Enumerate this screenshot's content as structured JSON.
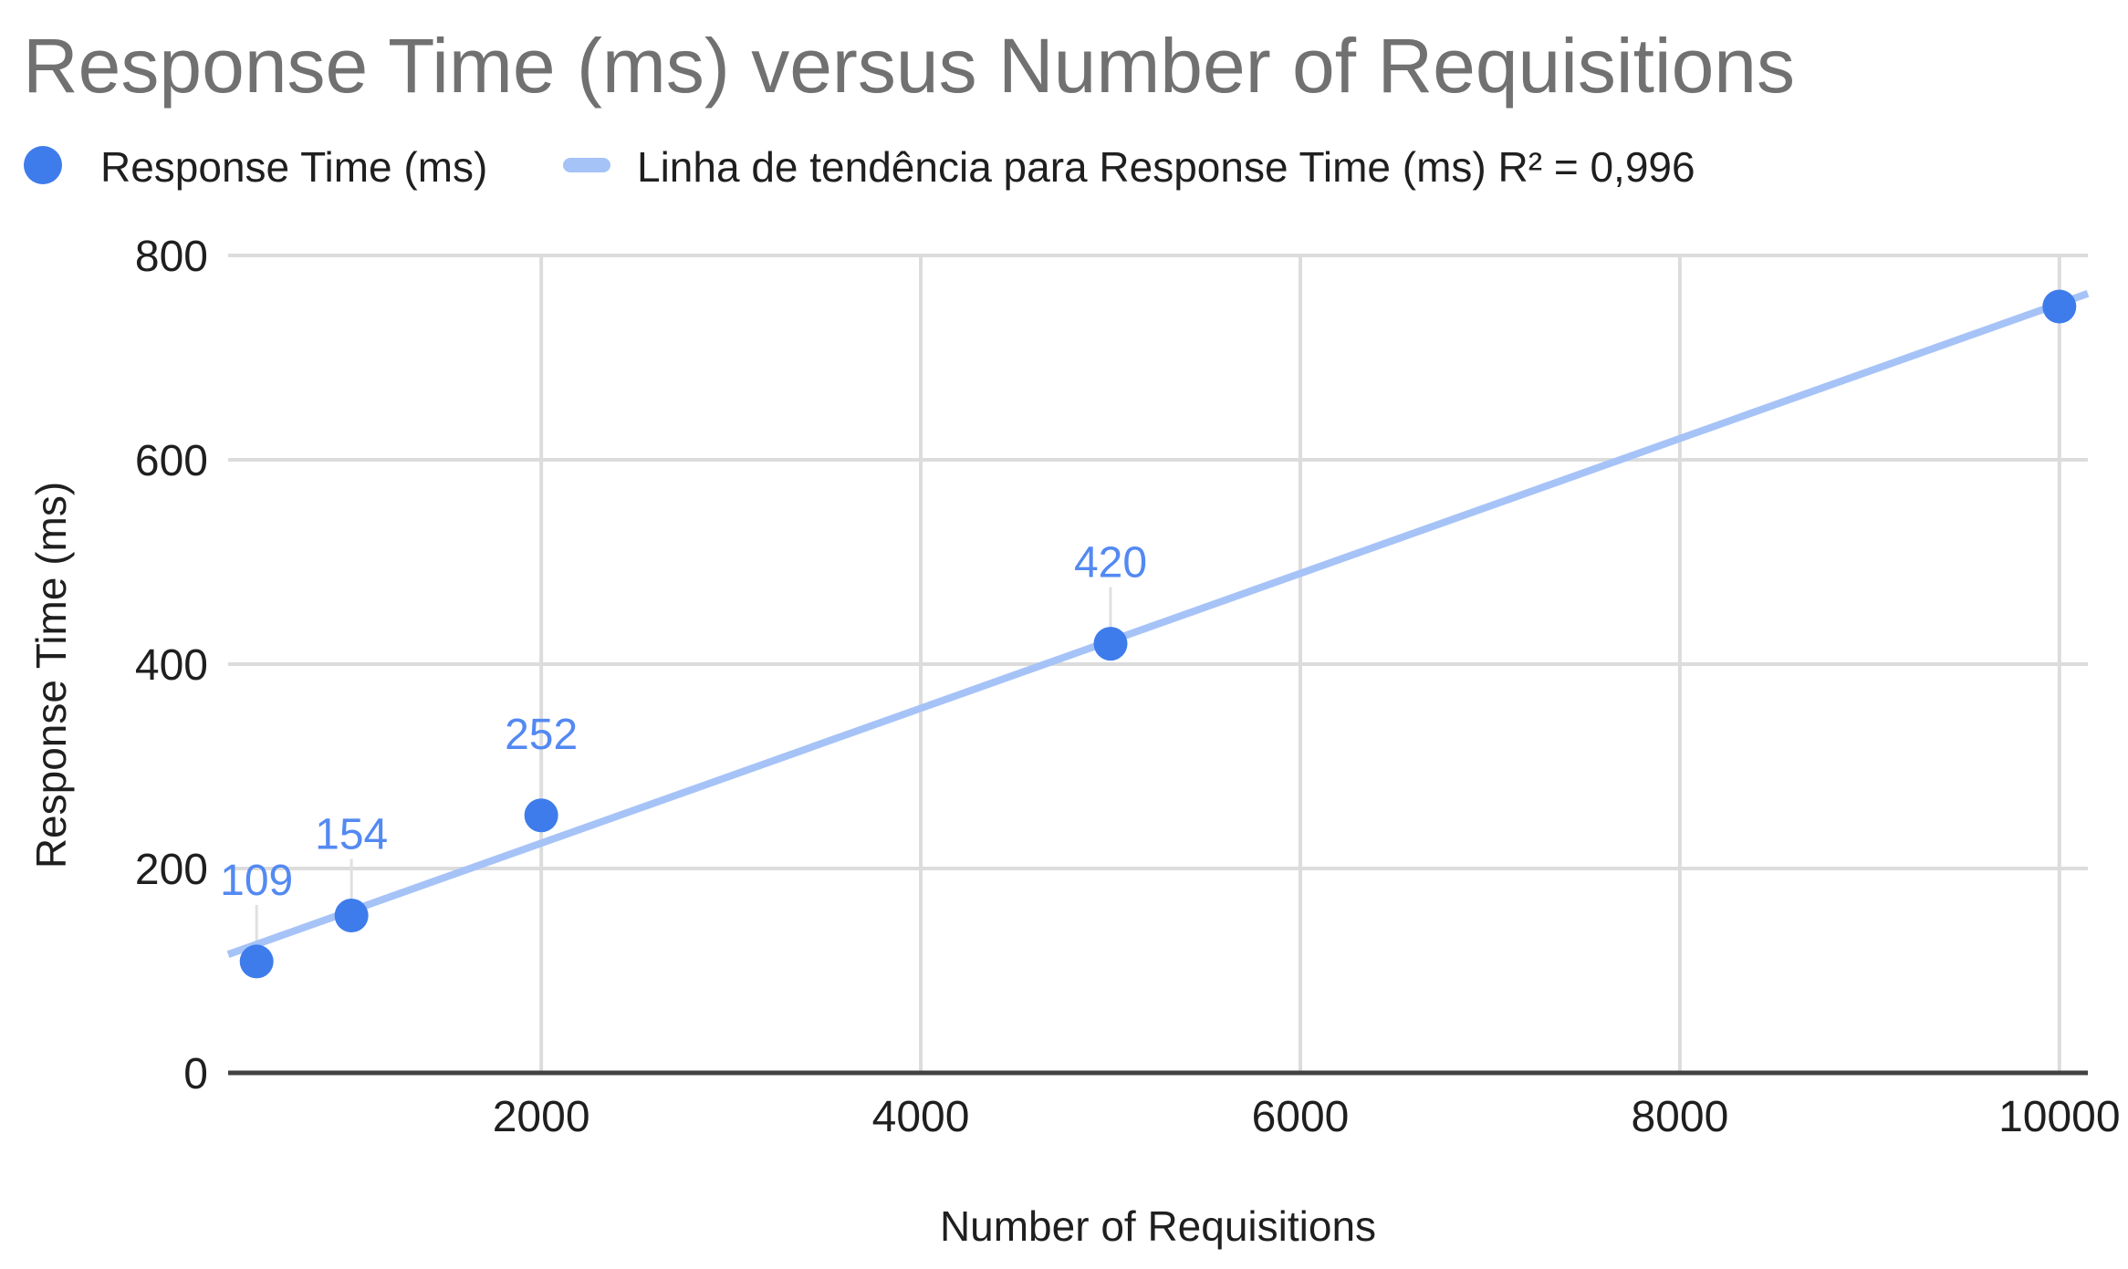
{
  "title": "Response Time (ms) versus Number of Requisitions",
  "legend": {
    "series_label": "Response Time (ms)",
    "trendline_label": "Linha de tendência para Response Time (ms) R² = 0,996"
  },
  "colors": {
    "point": "#3e7cec",
    "trendline": "#a6c3f7",
    "data_label": "#5389f2",
    "gridline": "#dcdcdc",
    "leader_line": "#e0e0e0",
    "axis_line": "#424242",
    "tick_text": "#1f1f1f",
    "title_text": "#717171"
  },
  "chart_data": {
    "type": "scatter",
    "title": "Response Time (ms) versus Number of Requisitions",
    "xlabel": "Number of Requisitions",
    "ylabel": "Response Time (ms)",
    "series": [
      {
        "name": "Response Time (ms)",
        "x": [
          500,
          1000,
          2000,
          5000,
          10000
        ],
        "y": [
          109,
          154,
          252,
          420,
          750
        ],
        "point_labels": [
          "109",
          "154",
          "252",
          "420",
          ""
        ]
      }
    ],
    "trendline": {
      "label": "Linha de tendência para Response Time (ms)",
      "r2_text": "R² = 0,996",
      "slope": 0.066,
      "intercept": 92.8
    },
    "x_ticks": [
      2000,
      4000,
      6000,
      8000,
      10000
    ],
    "x_tick_labels": [
      "2000",
      "4000",
      "6000",
      "8000",
      "10000"
    ],
    "y_ticks": [
      0,
      200,
      400,
      600,
      800
    ],
    "y_tick_labels": [
      "0",
      "200",
      "400",
      "600",
      "800"
    ],
    "xlim": [
      350,
      10150
    ],
    "ylim": [
      0,
      800
    ],
    "grid": true,
    "legend_position": "top"
  }
}
